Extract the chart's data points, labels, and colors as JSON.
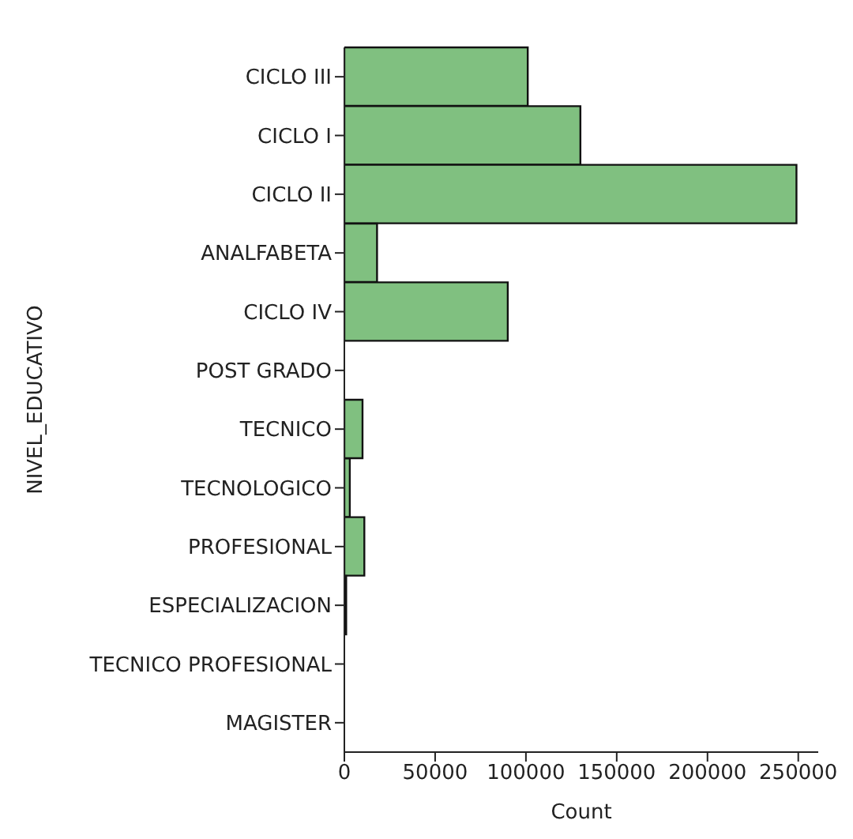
{
  "chart_data": {
    "type": "bar",
    "orientation": "horizontal",
    "xlabel": "Count",
    "ylabel": "NIVEL_EDUCATIVO",
    "categories": [
      "CICLO III",
      "CICLO I",
      "CICLO II",
      "ANALFABETA",
      "CICLO IV",
      "POST GRADO",
      "TECNICO",
      "TECNOLOGICO",
      "PROFESIONAL",
      "ESPECIALIZACION",
      "TECNICO PROFESIONAL",
      "MAGISTER"
    ],
    "values": [
      101000,
      130000,
      249000,
      18000,
      90000,
      0,
      10000,
      3000,
      11000,
      1000,
      0,
      0
    ],
    "color": "#80c080",
    "xlim": [
      0,
      261000
    ],
    "xticks": [
      0,
      50000,
      100000,
      150000,
      200000,
      250000
    ],
    "grid": false
  }
}
